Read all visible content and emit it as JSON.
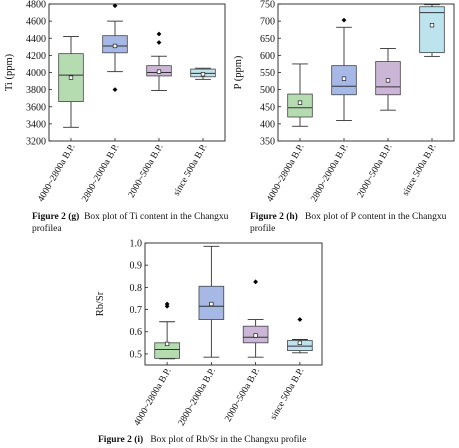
{
  "colors": {
    "groups": [
      "#b4dcb0",
      "#a6b8e6",
      "#cbb6d8",
      "#bde3ef"
    ],
    "median": "#333333",
    "whisker": "#333333",
    "outlier": "#000000"
  },
  "categories": [
    "4000~2800a B.P.",
    "2800~2000a B.P.",
    "2000~500a B.P.",
    "since 500a B.P."
  ],
  "chart_data": [
    {
      "id": "g",
      "type": "box",
      "ylabel": "Ti (ppm)",
      "ylim": [
        3200,
        4800
      ],
      "yticks": [
        3200,
        3400,
        3600,
        3800,
        4000,
        4200,
        4400,
        4600,
        4800
      ],
      "categories": [
        "4000~2800a B.P.",
        "2800~2000a B.P.",
        "2000~500a B.P.",
        "since 500a B.P."
      ],
      "boxes": [
        {
          "min": 3360,
          "q1": 3660,
          "median": 3970,
          "q3": 4220,
          "max": 4420,
          "mean": 3940,
          "outliers": []
        },
        {
          "min": 4010,
          "q1": 4230,
          "median": 4310,
          "q3": 4430,
          "max": 4600,
          "mean": 4310,
          "outliers": [
            4780,
            3800
          ]
        },
        {
          "min": 3790,
          "q1": 3960,
          "median": 4000,
          "q3": 4080,
          "max": 4190,
          "mean": 4010,
          "outliers": [
            4450,
            4350
          ]
        },
        {
          "min": 3920,
          "q1": 3950,
          "median": 3990,
          "q3": 4040,
          "max": 4050,
          "mean": 3980,
          "outliers": []
        }
      ],
      "caption": {
        "label": "Figure 2 (g)",
        "text": "Box plot of Ti content in the Changxu profilea"
      }
    },
    {
      "id": "h",
      "type": "box",
      "ylabel": "P (ppm)",
      "ylim": [
        350,
        750
      ],
      "yticks": [
        350,
        400,
        450,
        500,
        550,
        600,
        650,
        700,
        750
      ],
      "categories": [
        "4000~2800a B.P.",
        "2800~2000a B.P.",
        "2000~500a B.P.",
        "since 500a B.P."
      ],
      "boxes": [
        {
          "min": 393,
          "q1": 420,
          "median": 447,
          "q3": 487,
          "max": 575,
          "mean": 462,
          "outliers": []
        },
        {
          "min": 410,
          "q1": 485,
          "median": 510,
          "q3": 570,
          "max": 682,
          "mean": 532,
          "outliers": [
            703
          ]
        },
        {
          "min": 440,
          "q1": 485,
          "median": 508,
          "q3": 582,
          "max": 620,
          "mean": 527,
          "outliers": []
        },
        {
          "min": 597,
          "q1": 608,
          "median": 725,
          "q3": 742,
          "max": 748,
          "mean": 688,
          "outliers": []
        }
      ],
      "caption": {
        "label": "Figure 2 (h)",
        "text": "Box plot of P content in the Changxu profile"
      }
    },
    {
      "id": "i",
      "type": "box",
      "ylabel": "Rb/Sr",
      "ylim": [
        0.45,
        1.0
      ],
      "yticks": [
        0.5,
        0.6,
        0.7,
        0.8,
        0.9,
        1.0
      ],
      "categories": [
        "4000~2800a B.P.",
        "2800~2000a B.P.",
        "2000~500a B.P.",
        "since 500a B.P."
      ],
      "boxes": [
        {
          "min": 0.478,
          "q1": 0.48,
          "median": 0.52,
          "q3": 0.55,
          "max": 0.645,
          "mean": 0.545,
          "outliers": [
            0.725,
            0.715
          ]
        },
        {
          "min": 0.485,
          "q1": 0.655,
          "median": 0.715,
          "q3": 0.805,
          "max": 0.985,
          "mean": 0.725,
          "outliers": []
        },
        {
          "min": 0.485,
          "q1": 0.55,
          "median": 0.575,
          "q3": 0.625,
          "max": 0.655,
          "mean": 0.583,
          "outliers": [
            0.825
          ]
        },
        {
          "min": 0.505,
          "q1": 0.515,
          "median": 0.535,
          "q3": 0.56,
          "max": 0.565,
          "mean": 0.55,
          "outliers": [
            0.655
          ]
        }
      ],
      "caption": {
        "label": "Figure 2 (i)",
        "text": "Box plot of Rb/Sr in the Changxu profile"
      }
    }
  ]
}
